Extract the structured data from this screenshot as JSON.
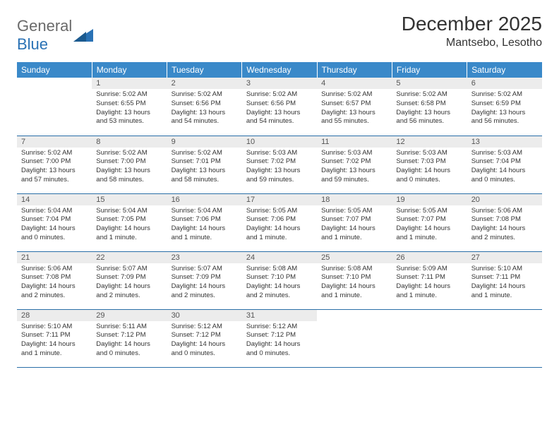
{
  "logo": {
    "general": "General",
    "blue": "Blue"
  },
  "title": "December 2025",
  "location": "Mantsebo, Lesotho",
  "colors": {
    "header_bg": "#3a89c9",
    "header_text": "#ffffff",
    "daynum_bg": "#ececec",
    "border": "#2a6fa8",
    "logo_gray": "#6a6a6a",
    "logo_blue": "#2a72b5"
  },
  "days_of_week": [
    "Sunday",
    "Monday",
    "Tuesday",
    "Wednesday",
    "Thursday",
    "Friday",
    "Saturday"
  ],
  "weeks": [
    [
      null,
      {
        "n": "1",
        "sr": "Sunrise: 5:02 AM",
        "ss": "Sunset: 6:55 PM",
        "dl": "Daylight: 13 hours and 53 minutes."
      },
      {
        "n": "2",
        "sr": "Sunrise: 5:02 AM",
        "ss": "Sunset: 6:56 PM",
        "dl": "Daylight: 13 hours and 54 minutes."
      },
      {
        "n": "3",
        "sr": "Sunrise: 5:02 AM",
        "ss": "Sunset: 6:56 PM",
        "dl": "Daylight: 13 hours and 54 minutes."
      },
      {
        "n": "4",
        "sr": "Sunrise: 5:02 AM",
        "ss": "Sunset: 6:57 PM",
        "dl": "Daylight: 13 hours and 55 minutes."
      },
      {
        "n": "5",
        "sr": "Sunrise: 5:02 AM",
        "ss": "Sunset: 6:58 PM",
        "dl": "Daylight: 13 hours and 56 minutes."
      },
      {
        "n": "6",
        "sr": "Sunrise: 5:02 AM",
        "ss": "Sunset: 6:59 PM",
        "dl": "Daylight: 13 hours and 56 minutes."
      }
    ],
    [
      {
        "n": "7",
        "sr": "Sunrise: 5:02 AM",
        "ss": "Sunset: 7:00 PM",
        "dl": "Daylight: 13 hours and 57 minutes."
      },
      {
        "n": "8",
        "sr": "Sunrise: 5:02 AM",
        "ss": "Sunset: 7:00 PM",
        "dl": "Daylight: 13 hours and 58 minutes."
      },
      {
        "n": "9",
        "sr": "Sunrise: 5:02 AM",
        "ss": "Sunset: 7:01 PM",
        "dl": "Daylight: 13 hours and 58 minutes."
      },
      {
        "n": "10",
        "sr": "Sunrise: 5:03 AM",
        "ss": "Sunset: 7:02 PM",
        "dl": "Daylight: 13 hours and 59 minutes."
      },
      {
        "n": "11",
        "sr": "Sunrise: 5:03 AM",
        "ss": "Sunset: 7:02 PM",
        "dl": "Daylight: 13 hours and 59 minutes."
      },
      {
        "n": "12",
        "sr": "Sunrise: 5:03 AM",
        "ss": "Sunset: 7:03 PM",
        "dl": "Daylight: 14 hours and 0 minutes."
      },
      {
        "n": "13",
        "sr": "Sunrise: 5:03 AM",
        "ss": "Sunset: 7:04 PM",
        "dl": "Daylight: 14 hours and 0 minutes."
      }
    ],
    [
      {
        "n": "14",
        "sr": "Sunrise: 5:04 AM",
        "ss": "Sunset: 7:04 PM",
        "dl": "Daylight: 14 hours and 0 minutes."
      },
      {
        "n": "15",
        "sr": "Sunrise: 5:04 AM",
        "ss": "Sunset: 7:05 PM",
        "dl": "Daylight: 14 hours and 1 minute."
      },
      {
        "n": "16",
        "sr": "Sunrise: 5:04 AM",
        "ss": "Sunset: 7:06 PM",
        "dl": "Daylight: 14 hours and 1 minute."
      },
      {
        "n": "17",
        "sr": "Sunrise: 5:05 AM",
        "ss": "Sunset: 7:06 PM",
        "dl": "Daylight: 14 hours and 1 minute."
      },
      {
        "n": "18",
        "sr": "Sunrise: 5:05 AM",
        "ss": "Sunset: 7:07 PM",
        "dl": "Daylight: 14 hours and 1 minute."
      },
      {
        "n": "19",
        "sr": "Sunrise: 5:05 AM",
        "ss": "Sunset: 7:07 PM",
        "dl": "Daylight: 14 hours and 1 minute."
      },
      {
        "n": "20",
        "sr": "Sunrise: 5:06 AM",
        "ss": "Sunset: 7:08 PM",
        "dl": "Daylight: 14 hours and 2 minutes."
      }
    ],
    [
      {
        "n": "21",
        "sr": "Sunrise: 5:06 AM",
        "ss": "Sunset: 7:08 PM",
        "dl": "Daylight: 14 hours and 2 minutes."
      },
      {
        "n": "22",
        "sr": "Sunrise: 5:07 AM",
        "ss": "Sunset: 7:09 PM",
        "dl": "Daylight: 14 hours and 2 minutes."
      },
      {
        "n": "23",
        "sr": "Sunrise: 5:07 AM",
        "ss": "Sunset: 7:09 PM",
        "dl": "Daylight: 14 hours and 2 minutes."
      },
      {
        "n": "24",
        "sr": "Sunrise: 5:08 AM",
        "ss": "Sunset: 7:10 PM",
        "dl": "Daylight: 14 hours and 2 minutes."
      },
      {
        "n": "25",
        "sr": "Sunrise: 5:08 AM",
        "ss": "Sunset: 7:10 PM",
        "dl": "Daylight: 14 hours and 1 minute."
      },
      {
        "n": "26",
        "sr": "Sunrise: 5:09 AM",
        "ss": "Sunset: 7:11 PM",
        "dl": "Daylight: 14 hours and 1 minute."
      },
      {
        "n": "27",
        "sr": "Sunrise: 5:10 AM",
        "ss": "Sunset: 7:11 PM",
        "dl": "Daylight: 14 hours and 1 minute."
      }
    ],
    [
      {
        "n": "28",
        "sr": "Sunrise: 5:10 AM",
        "ss": "Sunset: 7:11 PM",
        "dl": "Daylight: 14 hours and 1 minute."
      },
      {
        "n": "29",
        "sr": "Sunrise: 5:11 AM",
        "ss": "Sunset: 7:12 PM",
        "dl": "Daylight: 14 hours and 0 minutes."
      },
      {
        "n": "30",
        "sr": "Sunrise: 5:12 AM",
        "ss": "Sunset: 7:12 PM",
        "dl": "Daylight: 14 hours and 0 minutes."
      },
      {
        "n": "31",
        "sr": "Sunrise: 5:12 AM",
        "ss": "Sunset: 7:12 PM",
        "dl": "Daylight: 14 hours and 0 minutes."
      },
      null,
      null,
      null
    ]
  ]
}
